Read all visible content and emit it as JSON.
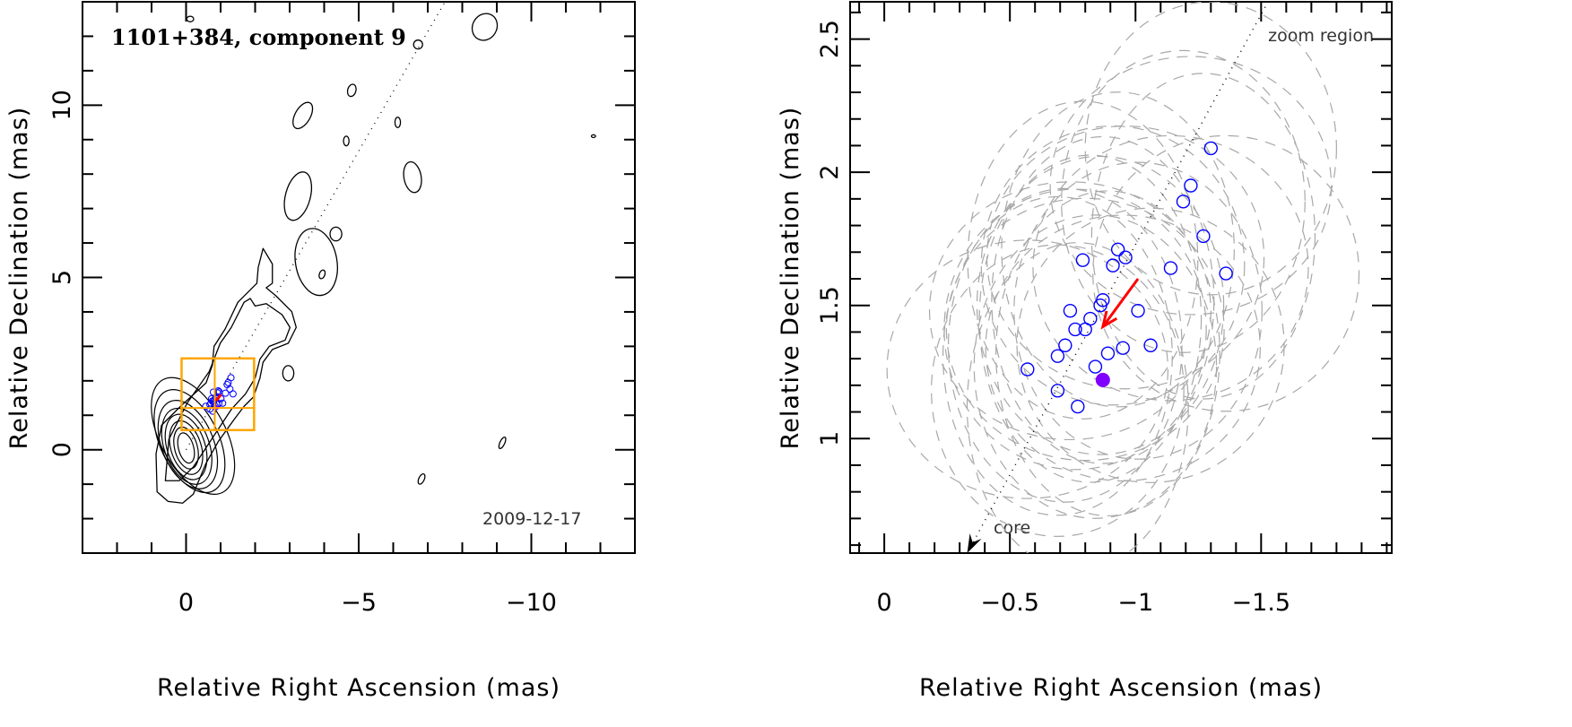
{
  "chart_data": [
    {
      "type": "contour",
      "title": "1101+384, component 9",
      "date_label": "2009-12-17",
      "xlabel": "Relative Right Ascension (mas)",
      "ylabel": "Relative Declination (mas)",
      "xlim": [
        3,
        -13
      ],
      "ylim": [
        -3,
        13
      ],
      "xticks": [
        0,
        -5,
        -10
      ],
      "yticks": [
        0,
        5,
        10
      ],
      "x_minor_step": 1,
      "y_minor_step": 1,
      "grid": false,
      "jet_axis": [
        [
          0,
          0
        ],
        [
          -7.5,
          13
        ]
      ],
      "core_contours": [
        {
          "x": 0.0,
          "y": 0.05,
          "rx": 0.22,
          "ry": 0.45,
          "angle": -15
        },
        {
          "x": 0.0,
          "y": 0.05,
          "rx": 0.33,
          "ry": 0.62,
          "angle": -15
        },
        {
          "x": 0.0,
          "y": 0.06,
          "rx": 0.44,
          "ry": 0.8,
          "angle": -17
        },
        {
          "x": 0.0,
          "y": 0.08,
          "rx": 0.55,
          "ry": 0.98,
          "angle": -18
        },
        {
          "x": -0.02,
          "y": 0.1,
          "rx": 0.65,
          "ry": 1.15,
          "angle": -20
        },
        {
          "x": -0.05,
          "y": 0.15,
          "rx": 0.75,
          "ry": 1.35,
          "angle": -22
        },
        {
          "x": -0.1,
          "y": 0.25,
          "rx": 0.85,
          "ry": 1.6,
          "angle": -25
        },
        {
          "x": -0.2,
          "y": 0.4,
          "rx": 0.95,
          "ry": 1.85,
          "angle": -28
        }
      ],
      "jet_contours": [
        [
          [
            0.52,
            -1.5
          ],
          [
            0.84,
            -1.22
          ],
          [
            0.87,
            -0.12
          ],
          [
            0.71,
            0.71
          ],
          [
            0.16,
            1.26
          ],
          [
            -0.58,
            1.94
          ],
          [
            -0.76,
            2.45
          ],
          [
            -0.81,
            3.0
          ],
          [
            -1.13,
            3.5
          ],
          [
            -1.5,
            4.28
          ],
          [
            -2.05,
            4.83
          ],
          [
            -2.09,
            5.29
          ],
          [
            -2.23,
            5.84
          ],
          [
            -2.5,
            5.39
          ],
          [
            -2.5,
            4.83
          ],
          [
            -2.32,
            4.7
          ],
          [
            -2.6,
            4.47
          ],
          [
            -3.06,
            4.01
          ],
          [
            -3.19,
            3.55
          ],
          [
            -2.96,
            3.09
          ],
          [
            -2.5,
            2.91
          ],
          [
            -2.23,
            2.54
          ],
          [
            -2.14,
            2.08
          ],
          [
            -1.95,
            1.53
          ],
          [
            -1.68,
            1.26
          ],
          [
            -1.4,
            0.89
          ],
          [
            -0.94,
            0.25
          ],
          [
            -0.58,
            -0.39
          ],
          [
            -0.35,
            -0.94
          ],
          [
            -0.21,
            -1.29
          ],
          [
            0.1,
            -1.55
          ]
        ],
        [
          [
            0.6,
            -0.9
          ],
          [
            0.5,
            0.3
          ],
          [
            -0.03,
            1.35
          ],
          [
            -0.67,
            2.27
          ],
          [
            -0.99,
            3.09
          ],
          [
            -1.31,
            3.55
          ],
          [
            -1.68,
            4.28
          ],
          [
            -1.86,
            4.39
          ],
          [
            -2.0,
            4.17
          ],
          [
            -2.32,
            4.24
          ],
          [
            -2.78,
            3.92
          ],
          [
            -3.01,
            3.55
          ],
          [
            -2.87,
            3.18
          ],
          [
            -2.41,
            3.0
          ],
          [
            -2.14,
            2.63
          ],
          [
            -2.0,
            2.08
          ],
          [
            -1.72,
            1.62
          ],
          [
            -1.31,
            1.17
          ],
          [
            -0.94,
            0.61
          ],
          [
            -0.58,
            0.06
          ],
          [
            -0.21,
            -0.5
          ],
          [
            0.2,
            -0.9
          ]
        ]
      ],
      "islands": [
        {
          "x": -8.65,
          "y": 12.27,
          "rx": 0.35,
          "ry": 0.4,
          "angle": 30
        },
        {
          "x": -6.72,
          "y": 11.76,
          "rx": 0.13,
          "ry": 0.13,
          "angle": 0
        },
        {
          "x": -4.8,
          "y": 10.43,
          "rx": 0.12,
          "ry": 0.18,
          "angle": 15
        },
        {
          "x": -3.38,
          "y": 9.7,
          "rx": 0.22,
          "ry": 0.42,
          "angle": 30
        },
        {
          "x": -6.13,
          "y": 9.5,
          "rx": 0.08,
          "ry": 0.15,
          "angle": 0
        },
        {
          "x": -4.64,
          "y": 8.96,
          "rx": 0.08,
          "ry": 0.14,
          "angle": 0
        },
        {
          "x": -3.24,
          "y": 7.36,
          "rx": 0.36,
          "ry": 0.72,
          "angle": 15
        },
        {
          "x": -6.56,
          "y": 7.91,
          "rx": 0.25,
          "ry": 0.45,
          "angle": -10
        },
        {
          "x": -4.34,
          "y": 6.26,
          "rx": 0.17,
          "ry": 0.2,
          "angle": 0
        },
        {
          "x": -3.77,
          "y": 5.45,
          "rx": 0.6,
          "ry": 0.98,
          "angle": -10
        },
        {
          "x": -3.94,
          "y": 5.09,
          "rx": 0.08,
          "ry": 0.13,
          "angle": 20
        },
        {
          "x": -2.96,
          "y": 2.22,
          "rx": 0.16,
          "ry": 0.22,
          "angle": 0
        },
        {
          "x": -9.16,
          "y": 0.2,
          "rx": 0.07,
          "ry": 0.18,
          "angle": 25
        },
        {
          "x": -6.82,
          "y": -0.85,
          "rx": 0.08,
          "ry": 0.16,
          "angle": 25
        },
        {
          "x": -11.8,
          "y": 9.1,
          "rx": 0.06,
          "ry": 0.04,
          "angle": 0
        },
        {
          "x": -0.12,
          "y": 12.5,
          "rx": 0.1,
          "ry": 0.08,
          "angle": 0
        }
      ],
      "zoom_box": {
        "x": [
          0.13,
          -1.97
        ],
        "y": [
          0.57,
          2.65
        ],
        "crosshair": [
          -0.83,
          1.21
        ],
        "color": "#ffa500"
      }
    },
    {
      "type": "scatter",
      "annotation_top": "zoom region",
      "annotation_core": "core",
      "xlabel": "Relative Right Ascension (mas)",
      "ylabel": "Relative Declination (mas)",
      "xlim": [
        0.136,
        -2.02
      ],
      "ylim": [
        0.57,
        2.64
      ],
      "xticks": [
        0,
        -0.5,
        -1,
        -1.5
      ],
      "xtick_labels": [
        "0",
        "−0.5",
        "−1",
        "−1.5"
      ],
      "yticks": [
        1,
        1.5,
        2,
        2.5
      ],
      "ytick_labels": [
        "1",
        "1.5",
        "2",
        "2.5"
      ],
      "x_minor_step": 0.1,
      "y_minor_step": 0.1,
      "grid": false,
      "jet_axis": [
        [
          -0.33,
          0.57
        ],
        [
          -1.62,
          2.8
        ]
      ],
      "points_color": "#0000ff",
      "points": [
        [
          -1.3,
          2.09
        ],
        [
          -1.22,
          1.95
        ],
        [
          -1.19,
          1.89
        ],
        [
          -1.27,
          1.76
        ],
        [
          -1.36,
          1.62
        ],
        [
          -1.14,
          1.64
        ],
        [
          -0.79,
          1.67
        ],
        [
          -0.93,
          1.71
        ],
        [
          -0.96,
          1.68
        ],
        [
          -0.91,
          1.65
        ],
        [
          -0.87,
          1.52
        ],
        [
          -0.86,
          1.5
        ],
        [
          -0.74,
          1.48
        ],
        [
          -1.01,
          1.48
        ],
        [
          -0.82,
          1.45
        ],
        [
          -0.76,
          1.41
        ],
        [
          -0.8,
          1.41
        ],
        [
          -0.72,
          1.35
        ],
        [
          -0.69,
          1.31
        ],
        [
          -0.95,
          1.34
        ],
        [
          -1.06,
          1.35
        ],
        [
          -0.89,
          1.32
        ],
        [
          -0.84,
          1.27
        ],
        [
          -0.57,
          1.26
        ],
        [
          -0.69,
          1.18
        ],
        [
          -0.77,
          1.12
        ]
      ],
      "error_ellipse_mas": {
        "rx": 0.5,
        "ry": 0.55
      },
      "ellipse_color": "#a8a8a8",
      "mean_position": {
        "x": -0.87,
        "y": 1.22,
        "color": "#8000ff"
      },
      "motion_arrow": {
        "from": [
          -1.01,
          1.6
        ],
        "to": [
          -0.87,
          1.42
        ],
        "color": "#ff0000"
      }
    }
  ]
}
